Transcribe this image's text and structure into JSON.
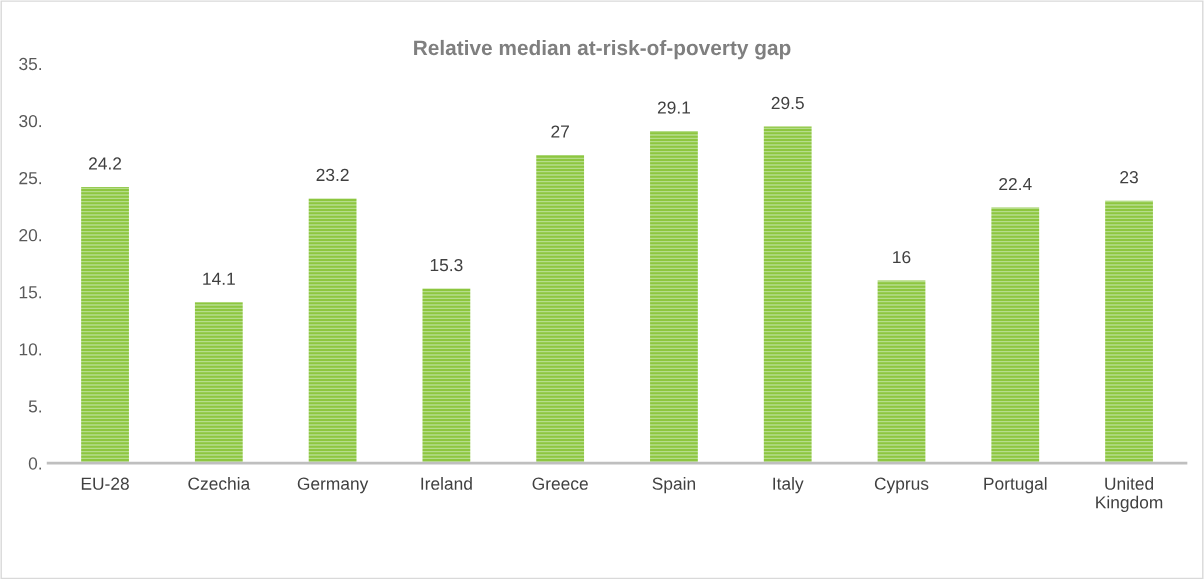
{
  "chart_data": {
    "type": "bar",
    "title": "Relative median at-risk-of-poverty gap",
    "categories": [
      "EU-28",
      "Czechia",
      "Germany",
      "Ireland",
      "Greece",
      "Spain",
      "Italy",
      "Cyprus",
      "Portugal",
      "United\nKingdom"
    ],
    "values": [
      24.2,
      14.1,
      23.2,
      15.3,
      27,
      29.1,
      29.5,
      16,
      22.4,
      23
    ],
    "color": "#8dc63f",
    "ylim": [
      0,
      35
    ],
    "yticks": [
      {
        "value": 0,
        "label": "0."
      },
      {
        "value": 5,
        "label": "5."
      },
      {
        "value": 10,
        "label": "10."
      },
      {
        "value": 15,
        "label": "15."
      },
      {
        "value": 20,
        "label": "20."
      },
      {
        "value": 25,
        "label": "25."
      },
      {
        "value": 30,
        "label": "30."
      },
      {
        "value": 35,
        "label": "35."
      }
    ],
    "data_labels": true,
    "grid": false,
    "legend": false
  }
}
